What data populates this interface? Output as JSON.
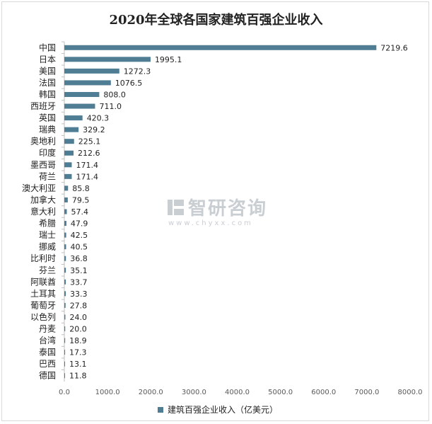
{
  "colors": {
    "bar": "#4f7d93",
    "grid": "#d9d9d9",
    "axis": "#bfbfbf",
    "watermark": "#c9ced3"
  },
  "watermark": {
    "name": "智研咨询",
    "url": "www.chyxx.com"
  },
  "chart_data": {
    "type": "bar",
    "orientation": "horizontal",
    "title": "2020年全球各国家建筑百强企业收入",
    "categories": [
      "中国",
      "日本",
      "美国",
      "法国",
      "韩国",
      "西班牙",
      "英国",
      "瑞典",
      "奥地利",
      "印度",
      "墨西哥",
      "荷兰",
      "澳大利亚",
      "加拿大",
      "意大利",
      "希腊",
      "瑞士",
      "挪威",
      "比利时",
      "芬兰",
      "阿联酋",
      "土耳其",
      "葡萄牙",
      "以色列",
      "丹麦",
      "台湾",
      "泰国",
      "巴西",
      "德国"
    ],
    "series": [
      {
        "name": "建筑百强企业收入（亿美元）",
        "values": [
          7219.6,
          1995.1,
          1272.3,
          1076.5,
          808.0,
          711.0,
          420.3,
          329.2,
          225.1,
          212.6,
          171.4,
          171.4,
          85.8,
          79.5,
          57.4,
          47.9,
          42.5,
          40.5,
          36.8,
          35.1,
          33.7,
          33.3,
          27.8,
          24.0,
          20.0,
          18.9,
          17.3,
          13.1,
          11.8
        ],
        "labels": [
          "7219.6",
          "1995.1",
          "1272.3",
          "1076.5",
          "808.0",
          "711.0",
          "420.3",
          "329.2",
          "225.1",
          "212.6",
          "171.4",
          "171.4",
          "85.8",
          "79.5",
          "57.4",
          "47.9",
          "42.5",
          "40.5",
          "36.8",
          "35.1",
          "33.7",
          "33.3",
          "27.8",
          "24.0",
          "20.0",
          "18.9",
          "17.3",
          "13.1",
          "11.8"
        ]
      }
    ],
    "xlim": [
      0,
      8000
    ],
    "xticks": [
      "0.0",
      "1000.0",
      "2000.0",
      "3000.0",
      "4000.0",
      "5000.0",
      "6000.0",
      "7000.0",
      "8000.0"
    ],
    "grid": false,
    "legend": "bottom"
  }
}
